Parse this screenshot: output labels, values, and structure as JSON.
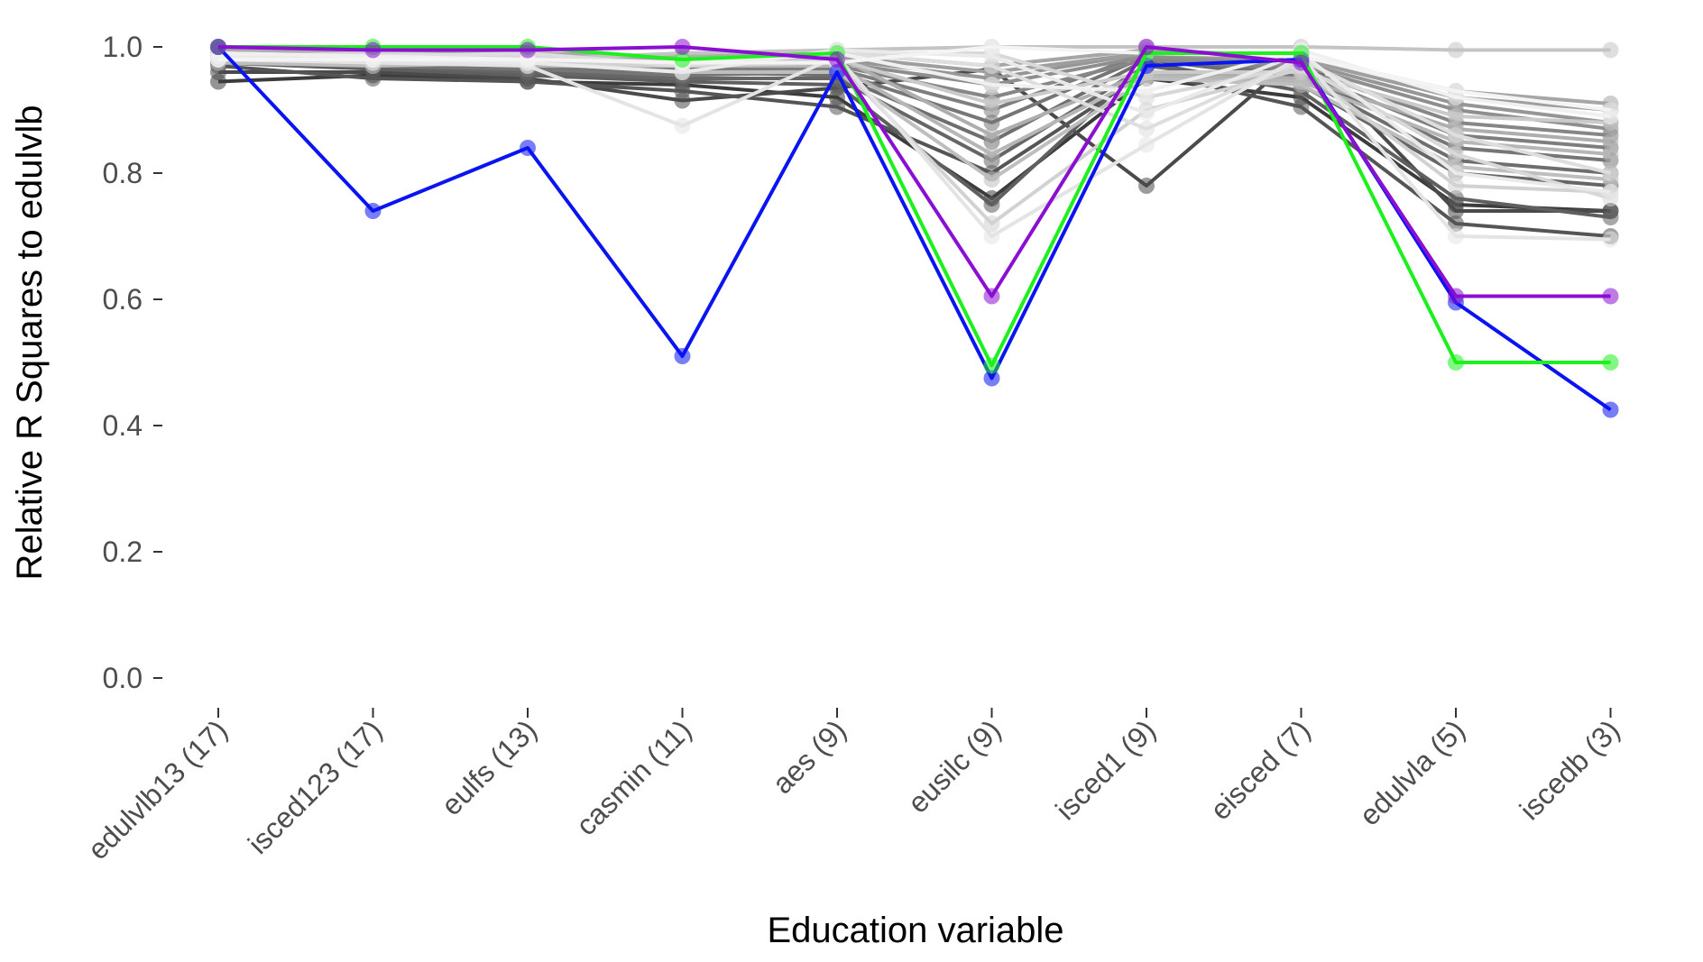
{
  "chart_data": {
    "type": "line",
    "xlabel": "Education variable",
    "ylabel": "Relative R Squares to edulvlb",
    "categories": [
      "edulvlb13 (17)",
      "isced123 (17)",
      "eulfs (13)",
      "casmin (11)",
      "aes (9)",
      "eusilc (9)",
      "isced1 (9)",
      "eisced (7)",
      "edulvla (5)",
      "iscedb (3)"
    ],
    "ylim": [
      0,
      1
    ],
    "yticks": [
      "0.0",
      "0.2",
      "0.4",
      "0.6",
      "0.8",
      "1.0"
    ],
    "grid": false,
    "legend": "none",
    "markers": "circle",
    "highlight_series": [
      {
        "color": "#0a14f0",
        "values": [
          1.0,
          0.74,
          0.84,
          0.51,
          0.96,
          0.475,
          0.97,
          0.98,
          0.595,
          0.425
        ]
      },
      {
        "color": "#1ef01e",
        "values": [
          1.0,
          1.0,
          1.0,
          0.98,
          0.99,
          0.495,
          0.99,
          0.99,
          0.5,
          0.5
        ]
      },
      {
        "color": "#8a0fd2",
        "values": [
          1.0,
          0.995,
          0.995,
          1.0,
          0.98,
          0.605,
          1.0,
          0.975,
          0.605,
          0.605
        ]
      }
    ],
    "background_series": [
      {
        "color": "#3c3c3c",
        "values": [
          0.945,
          0.955,
          0.945,
          0.94,
          0.92,
          0.76,
          0.95,
          0.92,
          0.75,
          0.74
        ]
      },
      {
        "color": "#4a4a4a",
        "values": [
          0.96,
          0.96,
          0.95,
          0.915,
          0.935,
          0.965,
          0.78,
          0.99,
          0.74,
          0.74
        ]
      },
      {
        "color": "#555555",
        "values": [
          0.97,
          0.95,
          0.945,
          0.93,
          0.905,
          0.8,
          0.96,
          0.905,
          0.72,
          0.7
        ]
      },
      {
        "color": "#5f5f5f",
        "values": [
          0.975,
          0.965,
          0.955,
          0.945,
          0.94,
          0.75,
          0.975,
          0.93,
          0.76,
          0.73
        ]
      },
      {
        "color": "#666666",
        "values": [
          0.98,
          0.97,
          0.96,
          0.95,
          0.95,
          0.82,
          0.97,
          0.94,
          0.8,
          0.78
        ]
      },
      {
        "color": "#6e6e6e",
        "values": [
          0.975,
          0.975,
          0.965,
          0.96,
          0.955,
          0.85,
          0.98,
          0.95,
          0.82,
          0.8
        ]
      },
      {
        "color": "#767676",
        "values": [
          0.985,
          0.97,
          0.965,
          0.955,
          0.96,
          0.88,
          0.985,
          0.955,
          0.84,
          0.82
        ]
      },
      {
        "color": "#7e7e7e",
        "values": [
          0.98,
          0.98,
          0.97,
          0.965,
          0.965,
          0.9,
          0.99,
          0.96,
          0.86,
          0.84
        ]
      },
      {
        "color": "#868686",
        "values": [
          0.99,
          0.985,
          0.975,
          0.97,
          0.97,
          0.92,
          0.98,
          0.965,
          0.88,
          0.86
        ]
      },
      {
        "color": "#8e8e8e",
        "values": [
          0.985,
          0.98,
          0.98,
          0.975,
          0.975,
          0.94,
          0.985,
          0.97,
          0.9,
          0.87
        ]
      },
      {
        "color": "#969696",
        "values": [
          0.99,
          0.99,
          0.985,
          0.98,
          0.98,
          0.95,
          0.99,
          0.975,
          0.91,
          0.88
        ]
      },
      {
        "color": "#9e9e9e",
        "values": [
          0.985,
          0.985,
          0.98,
          0.98,
          0.985,
          0.96,
          0.99,
          0.98,
          0.92,
          0.9
        ]
      },
      {
        "color": "#a6a6a6",
        "values": [
          0.99,
          0.99,
          0.99,
          0.985,
          0.99,
          0.97,
          0.995,
          0.985,
          0.93,
          0.91
        ]
      },
      {
        "color": "#aeaeae",
        "values": [
          0.995,
          0.99,
          0.985,
          0.985,
          0.985,
          0.86,
          0.96,
          0.95,
          0.87,
          0.85
        ]
      },
      {
        "color": "#b6b6b6",
        "values": [
          0.98,
          0.975,
          0.97,
          0.97,
          0.97,
          0.83,
          0.955,
          0.945,
          0.85,
          0.83
        ]
      },
      {
        "color": "#bebebe",
        "values": [
          0.975,
          0.97,
          0.975,
          0.96,
          0.96,
          0.79,
          0.95,
          0.94,
          0.81,
          0.79
        ]
      },
      {
        "color": "#c4c4c4",
        "values": [
          0.99,
          0.985,
          0.98,
          0.99,
          0.995,
          1.0,
          1.0,
          1.0,
          0.995,
          0.995
        ]
      },
      {
        "color": "#cacaca",
        "values": [
          0.985,
          0.98,
          0.98,
          0.975,
          0.98,
          0.91,
          0.96,
          0.96,
          0.89,
          0.88
        ]
      },
      {
        "color": "#d2d2d2",
        "values": [
          0.98,
          0.98,
          0.975,
          0.97,
          0.975,
          0.72,
          0.9,
          0.965,
          0.78,
          0.77
        ]
      },
      {
        "color": "#d8d8d8",
        "values": [
          0.985,
          0.99,
          0.985,
          0.975,
          0.99,
          0.99,
          0.92,
          0.97,
          0.83,
          0.76
        ]
      },
      {
        "color": "#dedede",
        "values": [
          0.99,
          0.985,
          0.99,
          0.97,
          0.99,
          0.97,
          0.87,
          0.98,
          0.86,
          0.8
        ]
      },
      {
        "color": "#e4e4e4",
        "values": [
          0.98,
          0.975,
          0.97,
          0.875,
          0.985,
          0.7,
          0.845,
          0.985,
          0.7,
          0.695
        ]
      },
      {
        "color": "#eaeaea",
        "values": [
          0.985,
          0.98,
          0.975,
          0.96,
          0.995,
          0.985,
          0.895,
          0.99,
          0.8,
          0.77
        ]
      },
      {
        "color": "#f0f0f0",
        "values": [
          0.99,
          0.985,
          0.98,
          0.975,
          0.99,
          0.94,
          0.93,
          0.995,
          0.92,
          0.89
        ]
      },
      {
        "color": "#f4f4f4",
        "values": [
          0.98,
          0.98,
          0.98,
          0.975,
          0.975,
          1.0,
          0.99,
          0.985,
          0.93,
          0.9
        ]
      }
    ]
  }
}
